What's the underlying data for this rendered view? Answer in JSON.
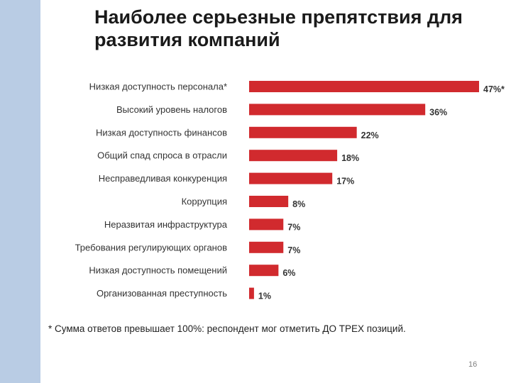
{
  "slide": {
    "title_line1": "Наиболее серьезные препятствия для",
    "title_line2": "развития компаний",
    "footnote": "* Сумма ответов превышает 100%: респондент мог отметить ДО ТРЕХ позиций.",
    "page_number": "16"
  },
  "colors": {
    "bar": "#d12a2e",
    "side_stripe": "#b9cce4",
    "label_text": "#333333",
    "value_text": "#333333"
  },
  "chart_data": {
    "type": "bar",
    "orientation": "horizontal",
    "title": "Наиболее серьезные препятствия для развития компаний",
    "categories": [
      "Низкая доступность персонала*",
      "Высокий уровень налогов",
      "Низкая доступность финансов",
      "Общий спад спроса в отрасли",
      "Несправедливая конкуренция",
      "Коррупция",
      "Неразвитая инфраструктура",
      "Требования регулирующих органов",
      "Низкая доступность помещений",
      "Организованная преступность"
    ],
    "values": [
      47,
      36,
      22,
      18,
      17,
      8,
      7,
      7,
      6,
      1
    ],
    "value_labels": [
      "47%*",
      "36%",
      "22%",
      "18%",
      "17%",
      "8%",
      "7%",
      "7%",
      "6%",
      "1%"
    ],
    "unit": "%",
    "xlim": [
      0,
      47
    ],
    "grid": false,
    "legend": "none"
  }
}
